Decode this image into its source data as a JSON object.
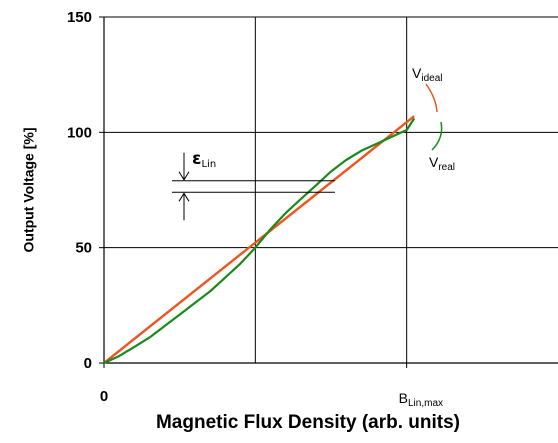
{
  "chart_data": {
    "type": "line",
    "title": "",
    "xlabel": "Magnetic Flux Density (arb. units)",
    "ylabel": "Output Voltage [%]",
    "xlim": [
      0,
      3
    ],
    "ylim": [
      0,
      150
    ],
    "x_ticks": [
      {
        "value": 0,
        "label": "0"
      },
      {
        "value": 2,
        "label": "B",
        "sub": "Lin,max"
      }
    ],
    "y_ticks": [
      {
        "value": 0,
        "label": "0"
      },
      {
        "value": 50,
        "label": "50"
      },
      {
        "value": 100,
        "label": "100"
      },
      {
        "value": 150,
        "label": "150"
      }
    ],
    "grid": true,
    "series": [
      {
        "name": "V",
        "name_sub": "ideal",
        "color": "#ee5520",
        "x": [
          0,
          2.05
        ],
        "y": [
          0,
          107
        ]
      },
      {
        "name": "V",
        "name_sub": "real",
        "color": "#1a8a1a",
        "x": [
          0,
          0.1,
          0.2,
          0.3,
          0.4,
          0.5,
          0.6,
          0.7,
          0.8,
          0.9,
          1.0,
          1.1,
          1.2,
          1.3,
          1.4,
          1.5,
          1.6,
          1.7,
          1.8,
          1.9,
          2.0,
          2.05
        ],
        "y": [
          0,
          3,
          7,
          11,
          16,
          21,
          26,
          31,
          37,
          43,
          50,
          58,
          65,
          71,
          77,
          83,
          88,
          92,
          95,
          98,
          101,
          106
        ]
      }
    ],
    "annotation": {
      "symbol": "ε",
      "sub": "Lin",
      "y_upper": 79,
      "y_lower": 74
    }
  }
}
